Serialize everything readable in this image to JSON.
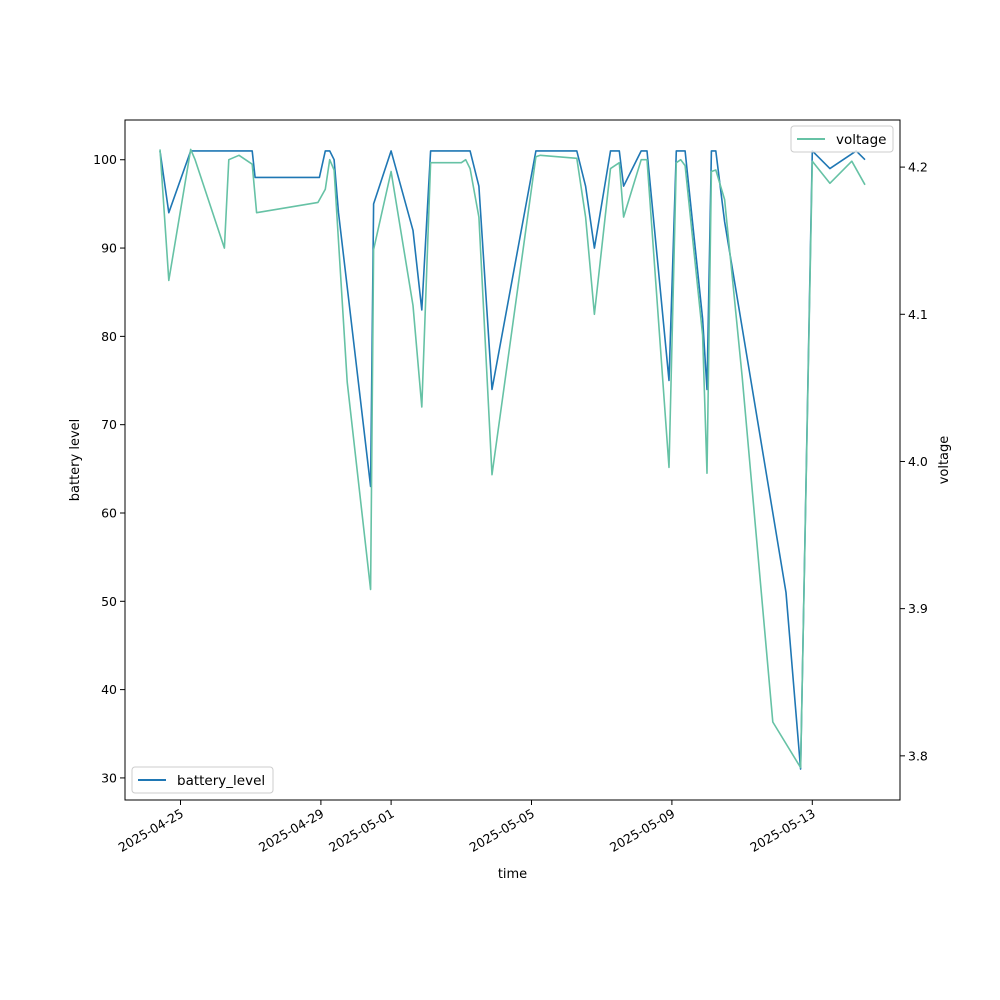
{
  "chart_data": {
    "type": "line",
    "title": "",
    "xlabel": "time",
    "ylabel_left": "battery level",
    "ylabel_right": "voltage",
    "x_tick_labels": [
      "2025-04-25",
      "2025-04-29",
      "2025-05-01",
      "2025-05-05",
      "2025-05-09",
      "2025-05-13"
    ],
    "left_axis": {
      "ylim": [
        27.5,
        104.5
      ],
      "ticks": [
        30,
        40,
        50,
        60,
        70,
        80,
        90,
        100
      ]
    },
    "right_axis": {
      "ylim": [
        3.77,
        4.232
      ],
      "ticks": [
        "3.8",
        "3.9",
        "4.0",
        "4.1",
        "4.2"
      ]
    },
    "grid": false,
    "series": [
      {
        "name": "battery_level",
        "axis": "left",
        "color": "#1f77b4",
        "legend": "lower-left",
        "points": [
          [
            "2025-04-24T10:00",
            101
          ],
          [
            "2025-04-24T16:00",
            94
          ],
          [
            "2025-04-25T07:00",
            101
          ],
          [
            "2025-04-27T01:00",
            101
          ],
          [
            "2025-04-27T03:00",
            98
          ],
          [
            "2025-04-28T23:00",
            98
          ],
          [
            "2025-04-29T03:00",
            101
          ],
          [
            "2025-04-29T06:00",
            101
          ],
          [
            "2025-04-29T09:00",
            100
          ],
          [
            "2025-04-29T12:00",
            94
          ],
          [
            "2025-04-30T10:00",
            63
          ],
          [
            "2025-04-30T12:00",
            95
          ],
          [
            "2025-05-01T00:00",
            101
          ],
          [
            "2025-05-01T15:00",
            92
          ],
          [
            "2025-05-01T21:00",
            83
          ],
          [
            "2025-05-02T03:00",
            101
          ],
          [
            "2025-05-03T06:00",
            101
          ],
          [
            "2025-05-03T12:00",
            97
          ],
          [
            "2025-05-03T21:00",
            74
          ],
          [
            "2025-05-05T03:00",
            101
          ],
          [
            "2025-05-06T07:00",
            101
          ],
          [
            "2025-05-06T13:00",
            97
          ],
          [
            "2025-05-06T19:00",
            90
          ],
          [
            "2025-05-07T06:00",
            101
          ],
          [
            "2025-05-07T12:00",
            101
          ],
          [
            "2025-05-07T15:00",
            97
          ],
          [
            "2025-05-08T03:00",
            101
          ],
          [
            "2025-05-08T07:00",
            101
          ],
          [
            "2025-05-08T22:00",
            75
          ],
          [
            "2025-05-09T03:00",
            101
          ],
          [
            "2025-05-09T09:00",
            101
          ],
          [
            "2025-05-09T21:00",
            82
          ],
          [
            "2025-05-10T00:00",
            74
          ],
          [
            "2025-05-10T03:00",
            101
          ],
          [
            "2025-05-10T06:00",
            101
          ],
          [
            "2025-05-10T12:00",
            93
          ],
          [
            "2025-05-12T06:00",
            51
          ],
          [
            "2025-05-12T16:00",
            31
          ],
          [
            "2025-05-13T00:00",
            101
          ],
          [
            "2025-05-13T12:00",
            99
          ],
          [
            "2025-05-14T06:00",
            101
          ],
          [
            "2025-05-14T12:00",
            100
          ]
        ]
      },
      {
        "name": "voltage",
        "axis": "right",
        "color": "#66c2a5",
        "legend": "top-right",
        "points": [
          [
            "2025-04-24T10:00",
            4.212
          ],
          [
            "2025-04-24T16:00",
            4.123
          ],
          [
            "2025-04-25T07:00",
            4.212
          ],
          [
            "2025-04-25T10:00",
            4.205
          ],
          [
            "2025-04-26T06:00",
            4.145
          ],
          [
            "2025-04-26T09:00",
            4.205
          ],
          [
            "2025-04-26T16:00",
            4.208
          ],
          [
            "2025-04-27T01:00",
            4.202
          ],
          [
            "2025-04-27T04:00",
            4.169
          ],
          [
            "2025-04-28T22:00",
            4.176
          ],
          [
            "2025-04-29T03:00",
            4.185
          ],
          [
            "2025-04-29T06:00",
            4.205
          ],
          [
            "2025-04-29T09:00",
            4.198
          ],
          [
            "2025-04-29T18:00",
            4.054
          ],
          [
            "2025-04-30T10:00",
            3.913
          ],
          [
            "2025-04-30T12:00",
            4.144
          ],
          [
            "2025-05-01T00:00",
            4.197
          ],
          [
            "2025-05-01T15:00",
            4.106
          ],
          [
            "2025-05-01T21:00",
            4.037
          ],
          [
            "2025-05-02T03:00",
            4.203
          ],
          [
            "2025-05-03T00:00",
            4.203
          ],
          [
            "2025-05-03T03:00",
            4.205
          ],
          [
            "2025-05-03T06:00",
            4.199
          ],
          [
            "2025-05-03T12:00",
            4.166
          ],
          [
            "2025-05-03T21:00",
            3.991
          ],
          [
            "2025-05-05T03:00",
            4.207
          ],
          [
            "2025-05-05T06:00",
            4.208
          ],
          [
            "2025-05-06T07:00",
            4.206
          ],
          [
            "2025-05-06T13:00",
            4.166
          ],
          [
            "2025-05-06T19:00",
            4.1
          ],
          [
            "2025-05-07T06:00",
            4.199
          ],
          [
            "2025-05-07T12:00",
            4.203
          ],
          [
            "2025-05-07T15:00",
            4.166
          ],
          [
            "2025-05-08T03:00",
            4.205
          ],
          [
            "2025-05-08T07:00",
            4.205
          ],
          [
            "2025-05-08T22:00",
            3.996
          ],
          [
            "2025-05-09T03:00",
            4.203
          ],
          [
            "2025-05-09T06:00",
            4.205
          ],
          [
            "2025-05-09T09:00",
            4.201
          ],
          [
            "2025-05-09T21:00",
            4.086
          ],
          [
            "2025-05-10T00:00",
            3.992
          ],
          [
            "2025-05-10T03:00",
            4.197
          ],
          [
            "2025-05-10T06:00",
            4.198
          ],
          [
            "2025-05-10T12:00",
            4.178
          ],
          [
            "2025-05-11T00:00",
            4.058
          ],
          [
            "2025-05-11T21:00",
            3.823
          ],
          [
            "2025-05-12T16:00",
            3.792
          ],
          [
            "2025-05-13T00:00",
            4.204
          ],
          [
            "2025-05-13T12:00",
            4.189
          ],
          [
            "2025-05-14T03:00",
            4.204
          ],
          [
            "2025-05-14T12:00",
            4.188
          ]
        ]
      }
    ]
  }
}
